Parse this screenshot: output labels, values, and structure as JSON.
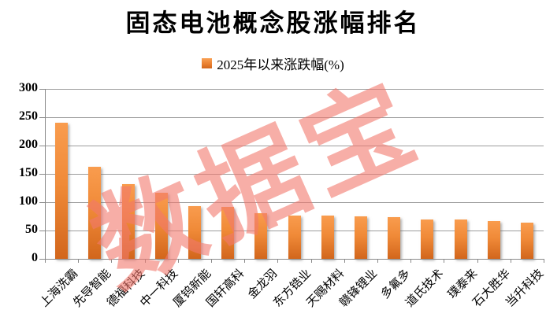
{
  "title": "固态电池概念股涨幅排名",
  "legend": {
    "label": "2025年以来涨跌幅(%)",
    "swatch_color": "#F08A38"
  },
  "watermark": "数据宝",
  "colors": {
    "bar_top": "#F99C4E",
    "bar_bottom": "#D2661C",
    "gridline": "#9C9C9C",
    "axis": "#8A8A8A",
    "text": "#000000",
    "watermark": "#F2796E"
  },
  "chart_data": {
    "type": "bar",
    "title": "固态电池概念股涨幅排名",
    "legend_entries": [
      "2025年以来涨跌幅(%)"
    ],
    "legend_position": "top",
    "categories": [
      "上海洗霸",
      "先导智能",
      "德福科技",
      "中一科技",
      "厦钨新能",
      "国轩高科",
      "金龙羽",
      "东方锆业",
      "天赐材料",
      "赣锋锂业",
      "多氟多",
      "道氏技术",
      "璞泰来",
      "石大胜华",
      "当升科技"
    ],
    "values": [
      240,
      162,
      132,
      116,
      93,
      92,
      81,
      77,
      76,
      75,
      73,
      70,
      69,
      66,
      64
    ],
    "xlabel": "",
    "ylabel": "",
    "ylim": [
      0,
      300
    ],
    "yticks": [
      0,
      50,
      100,
      150,
      200,
      250,
      300
    ],
    "grid": true,
    "bar_color": "#F08A38"
  }
}
